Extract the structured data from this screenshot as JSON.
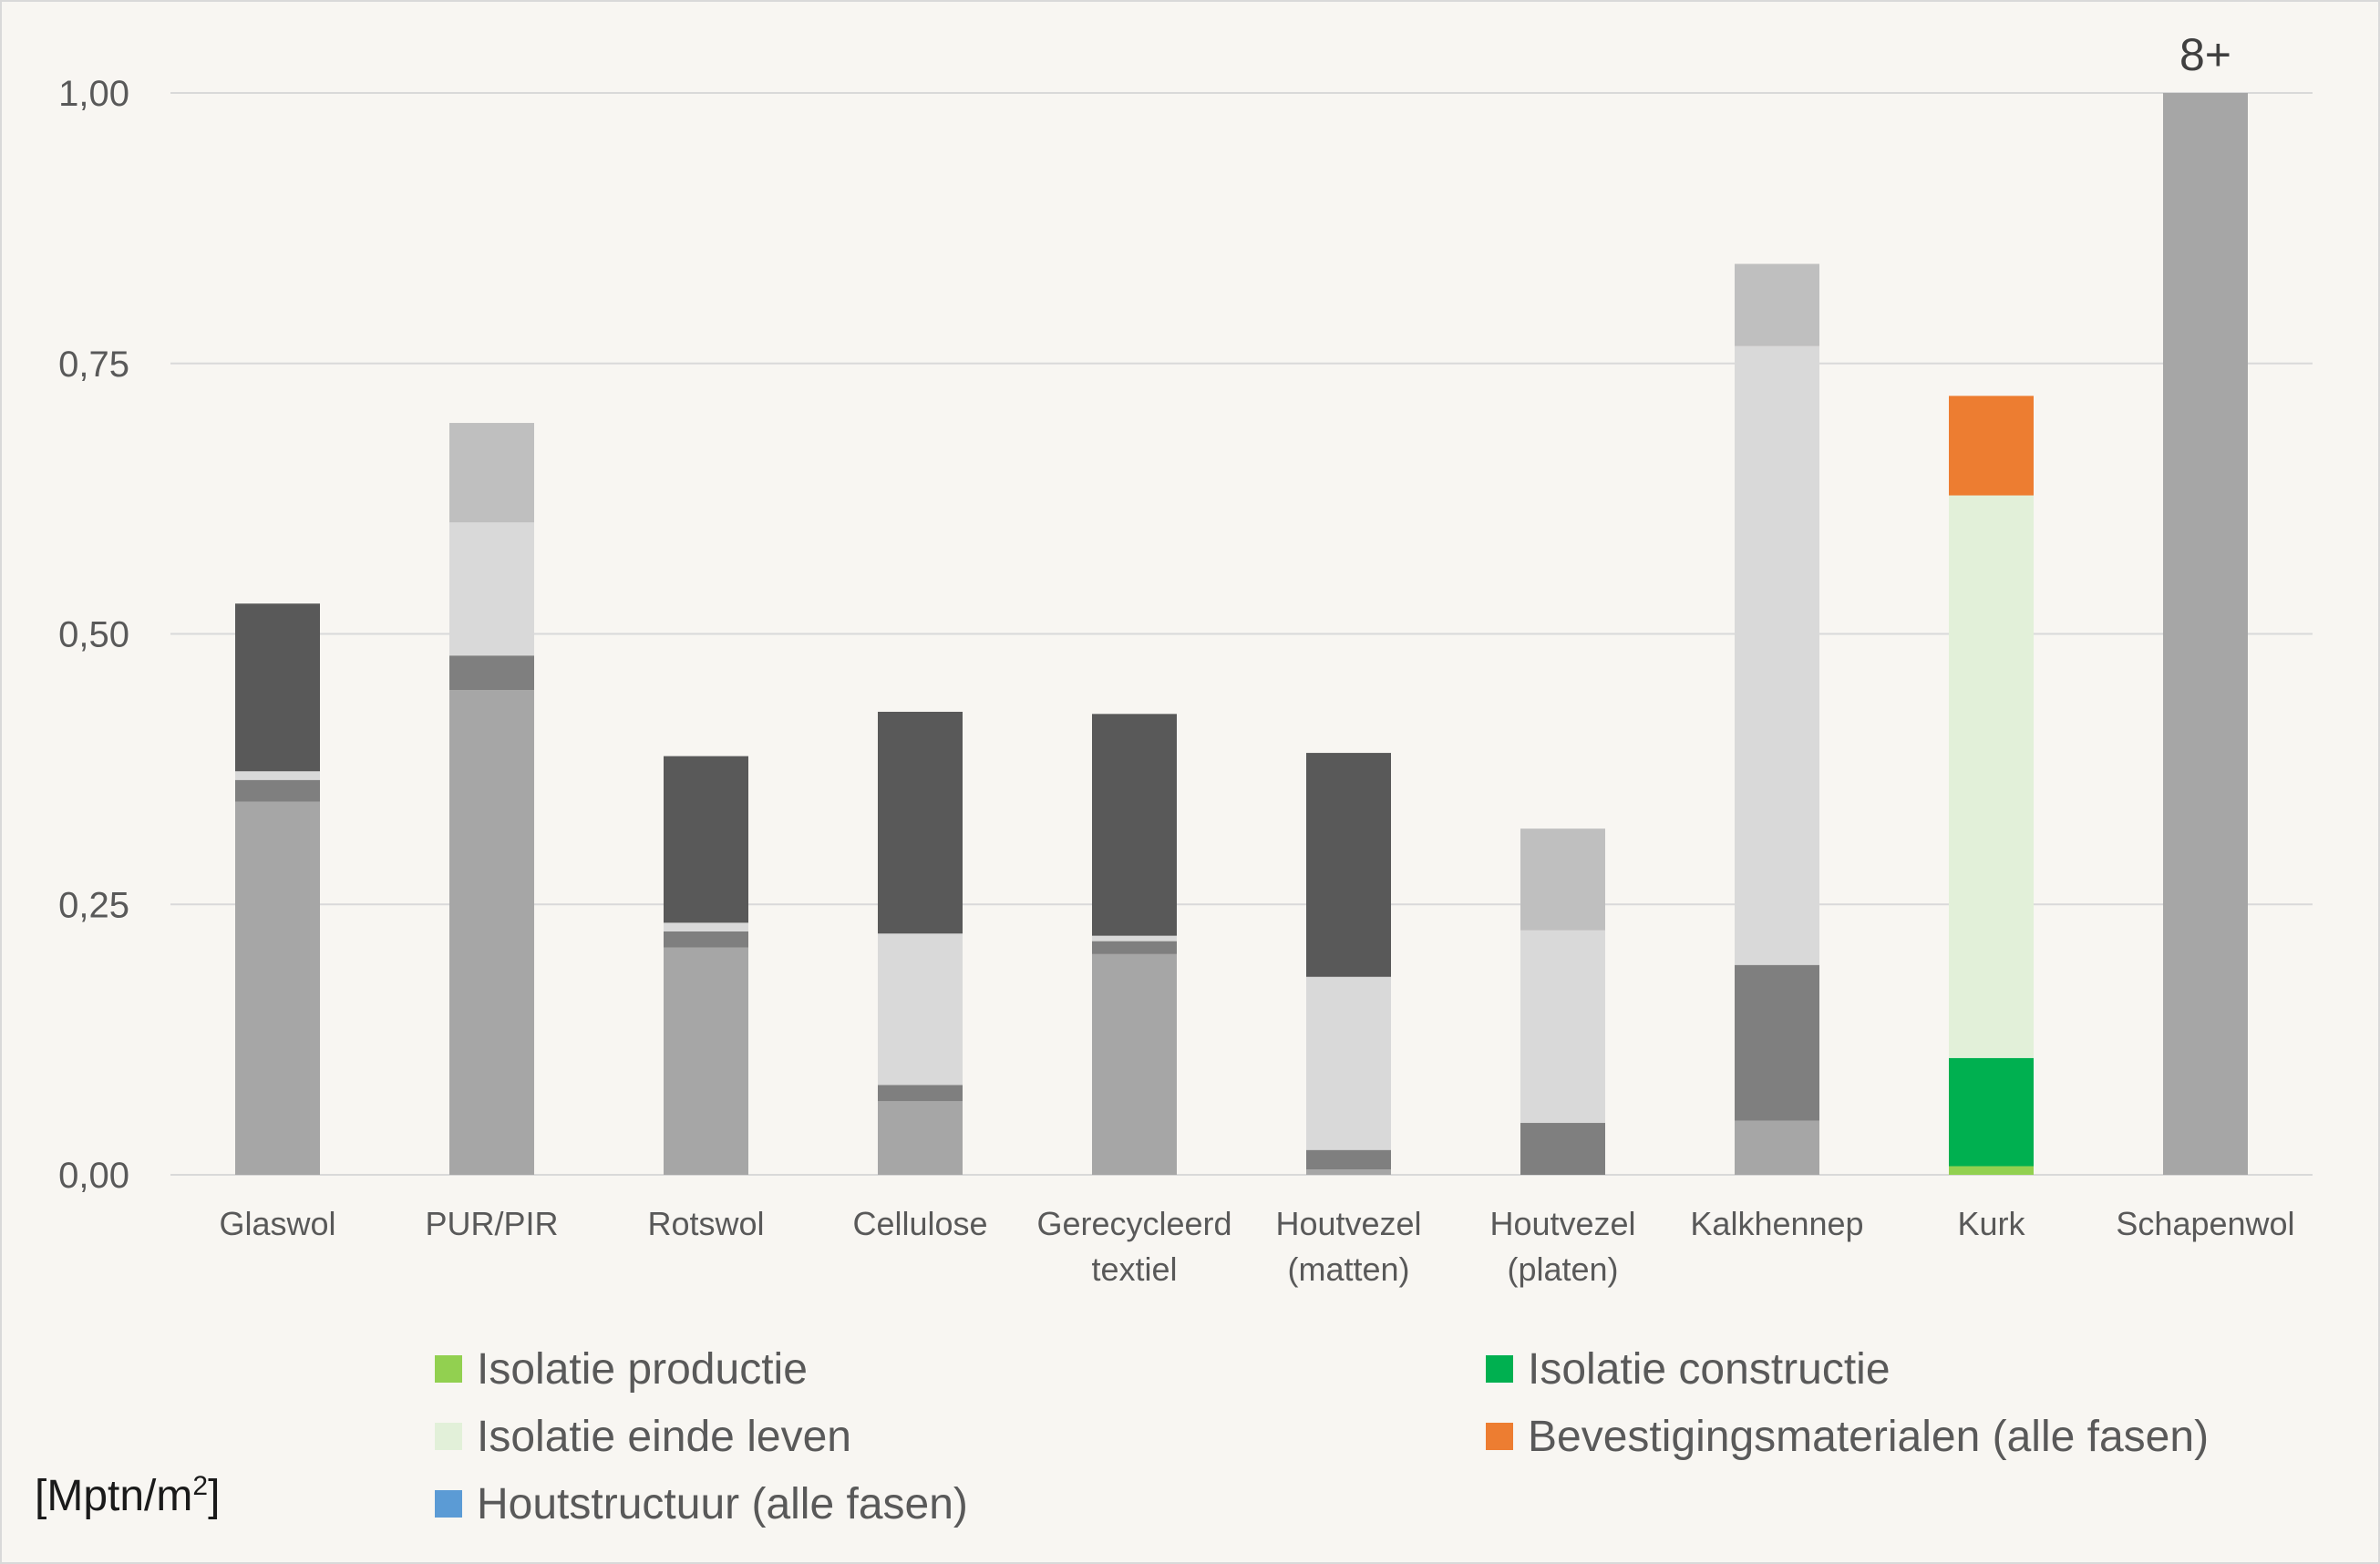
{
  "chart_data": {
    "type": "bar",
    "stacked": true,
    "categories": [
      [
        "Glaswol"
      ],
      [
        "PUR/PIR"
      ],
      [
        "Rotswol"
      ],
      [
        "Cellulose"
      ],
      [
        "Gerecycleerd",
        "textiel"
      ],
      [
        "Houtvezel",
        "(matten)"
      ],
      [
        "Houtvezel",
        "(platen)"
      ],
      [
        "Kalkhennep"
      ],
      [
        "Kurk"
      ],
      [
        "Schapenwol"
      ]
    ],
    "ylim": [
      0,
      1
    ],
    "yticks": [
      "0,00",
      "0,25",
      "0,50",
      "0,75",
      "1,00"
    ],
    "ytick_values": [
      0,
      0.25,
      0.5,
      0.75,
      1
    ],
    "ylabel_prefix": "[Mptn/m",
    "ylabel_sup": "2",
    "ylabel_suffix": "]",
    "grid": true,
    "overflow_label": "8+",
    "overflow_category_index": 9,
    "legend_position": "bottom",
    "colors": {
      "Isolatie productie": "#92d050",
      "Isolatie constructie": "#00b050",
      "Isolatie einde leven": "#e2f0d9",
      "Bevestigingsmaterialen (alle fasen)": "#ed7d31",
      "Houtstructuur (alle fasen)": "#5b9bd5"
    },
    "legend": [
      {
        "label": "Isolatie productie",
        "color": "#92d050"
      },
      {
        "label": "Isolatie constructie",
        "color": "#00b050"
      },
      {
        "label": "Isolatie einde leven",
        "color": "#e2f0d9"
      },
      {
        "label": "Bevestigingsmaterialen (alle fasen)",
        "color": "#ed7d31"
      },
      {
        "label": "Houtstructuur (alle fasen)",
        "color": "#5b9bd5"
      }
    ],
    "stacks": [
      [
        {
          "value": 0.345,
          "color": "#a6a6a6"
        },
        {
          "value": 0.02,
          "color": "#7f7f7f"
        },
        {
          "value": 0.008,
          "color": "#d9d9d9"
        },
        {
          "value": 0.155,
          "color": "#595959"
        }
      ],
      [
        {
          "value": 0.448,
          "color": "#a6a6a6"
        },
        {
          "value": 0.032,
          "color": "#7f7f7f"
        },
        {
          "value": 0.123,
          "color": "#d9d9d9"
        },
        {
          "value": 0.092,
          "color": "#bfbfbf"
        }
      ],
      [
        {
          "value": 0.21,
          "color": "#a6a6a6"
        },
        {
          "value": 0.015,
          "color": "#7f7f7f"
        },
        {
          "value": 0.008,
          "color": "#d9d9d9"
        },
        {
          "value": 0.154,
          "color": "#595959"
        }
      ],
      [
        {
          "value": 0.068,
          "color": "#a6a6a6"
        },
        {
          "value": 0.015,
          "color": "#7f7f7f"
        },
        {
          "value": 0.14,
          "color": "#d9d9d9"
        },
        {
          "value": 0.205,
          "color": "#595959"
        }
      ],
      [
        {
          "value": 0.204,
          "color": "#a6a6a6"
        },
        {
          "value": 0.012,
          "color": "#7f7f7f"
        },
        {
          "value": 0.005,
          "color": "#d9d9d9"
        },
        {
          "value": 0.205,
          "color": "#595959"
        }
      ],
      [
        {
          "value": 0.005,
          "color": "#a6a6a6"
        },
        {
          "value": 0.018,
          "color": "#7f7f7f"
        },
        {
          "value": 0.16,
          "color": "#d9d9d9"
        },
        {
          "value": 0.207,
          "color": "#595959"
        }
      ],
      [
        {
          "value": 0.048,
          "color": "#7f7f7f"
        },
        {
          "value": 0.178,
          "color": "#d9d9d9"
        },
        {
          "value": 0.094,
          "color": "#bfbfbf"
        }
      ],
      [
        {
          "value": 0.05,
          "color": "#a6a6a6"
        },
        {
          "value": 0.144,
          "color": "#7f7f7f"
        },
        {
          "value": 0.572,
          "color": "#d9d9d9"
        },
        {
          "value": 0.076,
          "color": "#bfbfbf"
        }
      ],
      [
        {
          "value": 0.008,
          "color": "#92d050"
        },
        {
          "value": 0.1,
          "color": "#00b050"
        },
        {
          "value": 0.52,
          "color": "#e2f0d9"
        },
        {
          "value": 0.092,
          "color": "#ed7d31"
        }
      ],
      [
        {
          "value": 1.0,
          "color": "#a6a6a6"
        }
      ]
    ]
  }
}
